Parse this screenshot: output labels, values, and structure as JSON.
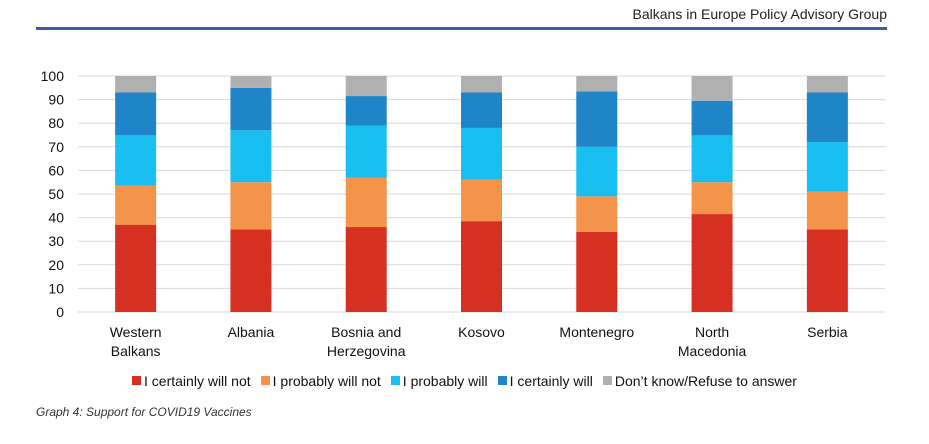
{
  "header": {
    "org": "Balkans in Europe Policy Advisory Group"
  },
  "caption": "Graph 4: Support for COVID19 Vaccines",
  "chart_data": {
    "type": "bar",
    "stacked": true,
    "categories": [
      [
        "Western",
        "Balkans"
      ],
      [
        "Albania"
      ],
      [
        "Bosnia and",
        "Herzegovina"
      ],
      [
        "Kosovo"
      ],
      [
        "Montenegro"
      ],
      [
        "North",
        "Macedonia"
      ],
      [
        "Serbia"
      ]
    ],
    "series": [
      {
        "name": "I certainly will not",
        "color": "#d63022",
        "values": [
          37,
          35,
          36,
          38.5,
          34,
          41.5,
          35
        ]
      },
      {
        "name": "I probably will not",
        "color": "#f4944a",
        "values": [
          16.5,
          20,
          21,
          17.5,
          15,
          13.5,
          16
        ]
      },
      {
        "name": "I probably will",
        "color": "#18bff0",
        "values": [
          21.5,
          22,
          22,
          22,
          21,
          20,
          21
        ]
      },
      {
        "name": "I certainly will",
        "color": "#1f85c9",
        "values": [
          18,
          18,
          12.5,
          15,
          23.5,
          14.5,
          21
        ]
      },
      {
        "name": "Don’t know/Refuse to answer",
        "color": "#b0b0b0",
        "values": [
          7,
          5,
          8.5,
          7,
          6.5,
          10.5,
          7
        ]
      }
    ],
    "ylim": [
      0,
      100
    ],
    "yticks": [
      0,
      10,
      20,
      30,
      40,
      50,
      60,
      70,
      80,
      90,
      100
    ],
    "grid": true,
    "legend_position": "bottom"
  }
}
